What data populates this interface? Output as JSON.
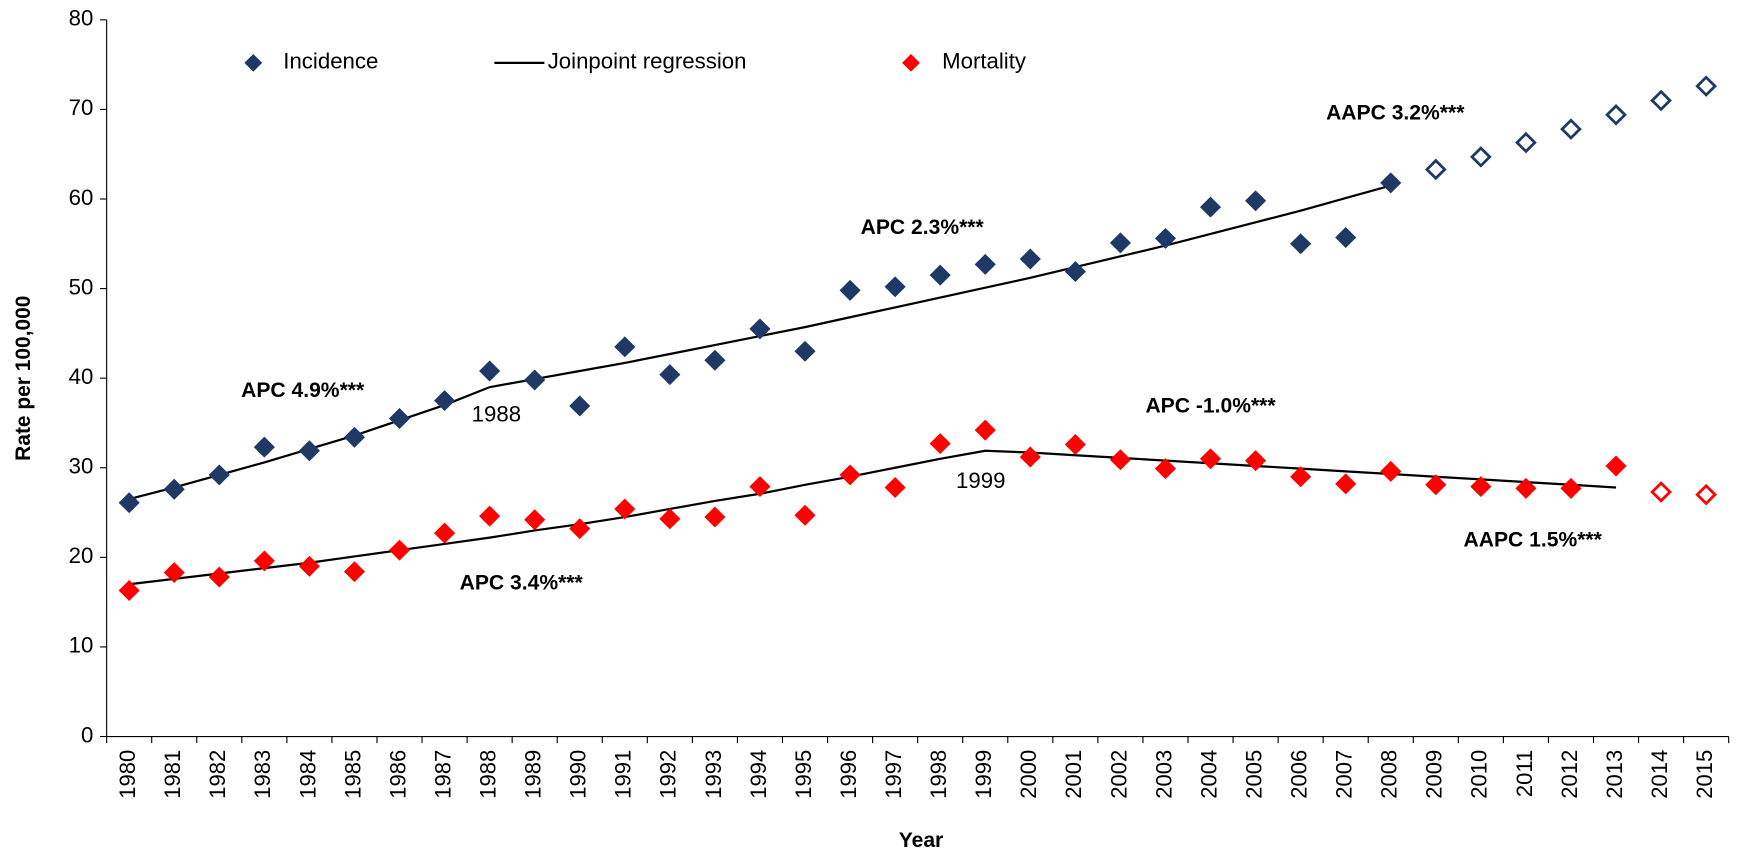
{
  "chart_data": {
    "type": "scatter",
    "x_label": "Year",
    "y_label": "Rate per 100,000",
    "categories": [
      "1980",
      "1981",
      "1982",
      "1983",
      "1984",
      "1985",
      "1986",
      "1987",
      "1988",
      "1989",
      "1990",
      "1991",
      "1992",
      "1993",
      "1994",
      "1995",
      "1996",
      "1997",
      "1998",
      "1999",
      "2000",
      "2001",
      "2002",
      "2003",
      "2004",
      "2005",
      "2006",
      "2007",
      "2008",
      "2009",
      "2010",
      "2011",
      "2012",
      "2013",
      "2014",
      "2015"
    ],
    "ylim": [
      0,
      80
    ],
    "yticks": [
      0,
      10,
      20,
      30,
      40,
      50,
      60,
      70,
      80
    ],
    "series": [
      {
        "name": "Incidence",
        "color": "#1f3864",
        "hollow_from": "2009",
        "values": [
          26.1,
          27.6,
          29.2,
          32.3,
          31.9,
          33.4,
          35.5,
          37.5,
          40.8,
          39.8,
          36.9,
          43.5,
          40.4,
          42.0,
          45.5,
          43.0,
          49.8,
          50.2,
          51.5,
          52.7,
          53.3,
          51.9,
          55.1,
          55.6,
          59.1,
          59.8,
          55.0,
          55.7,
          61.8,
          63.3,
          64.7,
          66.3,
          67.8,
          69.4,
          71.0,
          72.6
        ]
      },
      {
        "name": "Mortality",
        "color": "#ff0000",
        "hollow_from": "2014",
        "values": [
          16.3,
          18.3,
          17.8,
          19.6,
          19.0,
          18.4,
          20.8,
          22.7,
          24.6,
          24.2,
          23.2,
          25.4,
          24.3,
          24.5,
          27.9,
          24.7,
          29.2,
          27.8,
          32.7,
          34.2,
          31.2,
          32.6,
          30.9,
          29.9,
          31.0,
          30.8,
          29.0,
          28.2,
          29.6,
          28.1,
          27.9,
          27.7,
          27.7,
          30.2,
          27.3,
          27.0
        ]
      }
    ],
    "regression": {
      "name": "Joinpoint regression",
      "color": "#000000",
      "lines": [
        [
          26.5,
          27.8,
          29.2,
          30.6,
          32.1,
          33.6,
          35.3,
          37.0,
          39.0,
          39.9,
          40.8,
          41.7,
          42.7,
          43.7,
          44.7,
          45.7,
          46.8,
          47.9,
          49.0,
          50.1,
          51.2,
          52.4,
          53.6,
          54.8,
          56.1,
          57.4,
          58.7,
          60.1,
          61.5,
          null,
          null,
          null,
          null,
          null,
          null,
          null
        ],
        [
          17.0,
          17.6,
          18.2,
          18.8,
          19.4,
          20.1,
          20.8,
          21.5,
          22.2,
          23.0,
          23.7,
          24.5,
          25.4,
          26.3,
          27.1,
          28.1,
          29.0,
          30.0,
          31.0,
          31.9,
          31.7,
          31.4,
          31.1,
          30.8,
          30.5,
          30.2,
          29.9,
          29.6,
          29.3,
          29.0,
          28.7,
          28.4,
          28.1,
          27.8,
          null,
          null
        ]
      ]
    },
    "annotations": [
      {
        "text": "APC 4.9%***",
        "color": "#1f3864"
      },
      {
        "text": "APC 2.3%***",
        "color": "#1f3864"
      },
      {
        "text": "AAPC 3.2%***",
        "color": "#1f3864"
      },
      {
        "text": "APC 3.4%***",
        "color": "#ff0000"
      },
      {
        "text": "APC -1.0%***",
        "color": "#ff0000"
      },
      {
        "text": "AAPC 1.5%***",
        "color": "#ff0000"
      },
      {
        "text": "1988",
        "color": "#000000"
      },
      {
        "text": "1999",
        "color": "#000000"
      }
    ]
  }
}
